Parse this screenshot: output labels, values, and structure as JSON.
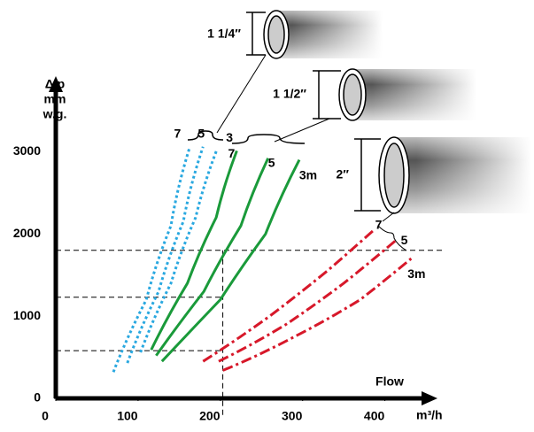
{
  "chart_data": {
    "type": "line",
    "y_label": [
      "Δ p",
      "mm",
      "w.g."
    ],
    "x_label": "Flow",
    "x_unit": "m³/h",
    "xlim": [
      0,
      465
    ],
    "ylim": [
      0,
      3800
    ],
    "xticks": [
      0,
      100,
      200,
      300,
      400
    ],
    "yticks": [
      0,
      1000,
      2000,
      3000
    ],
    "guides": {
      "y": [
        580,
        1230,
        1800
      ],
      "x": 203
    },
    "series": [
      {
        "name": "7",
        "group": 0,
        "color": "#29a8e0",
        "style": "dotted",
        "x": [
          70,
          110,
          140,
          163
        ],
        "values": [
          320,
          1200,
          2100,
          3060
        ]
      },
      {
        "name": "5",
        "group": 0,
        "color": "#29a8e0",
        "style": "dotted",
        "x": [
          87,
          125,
          155,
          179
        ],
        "values": [
          430,
          1300,
          2150,
          3060
        ]
      },
      {
        "name": "3",
        "group": 0,
        "color": "#29a8e0",
        "style": "dotted",
        "x": [
          103,
          140,
          170,
          196
        ],
        "values": [
          560,
          1400,
          2200,
          3030
        ]
      },
      {
        "name": "7",
        "group": 1,
        "color": "#1a9a3a",
        "style": "solid",
        "x": [
          116,
          160,
          195,
          220
        ],
        "values": [
          590,
          1400,
          2200,
          3010
        ]
      },
      {
        "name": "5",
        "group": 1,
        "color": "#1a9a3a",
        "style": "solid",
        "x": [
          122,
          180,
          225,
          258
        ],
        "values": [
          520,
          1300,
          2100,
          2920
        ]
      },
      {
        "name": "3m",
        "group": 1,
        "color": "#1a9a3a",
        "style": "solid",
        "x": [
          129,
          200,
          255,
          296
        ],
        "values": [
          450,
          1200,
          2000,
          2900
        ]
      },
      {
        "name": "7",
        "group": 2,
        "color": "#d7182a",
        "style": "dashdot",
        "x": [
          179,
          260,
          330,
          388
        ],
        "values": [
          450,
          1000,
          1550,
          2060
        ]
      },
      {
        "name": "5",
        "group": 2,
        "color": "#d7182a",
        "style": "dashdot",
        "x": [
          198,
          280,
          350,
          415
        ],
        "values": [
          450,
          900,
          1400,
          1935
        ]
      },
      {
        "name": "3m",
        "group": 2,
        "color": "#d7182a",
        "style": "dashdot",
        "x": [
          203,
          290,
          370,
          432
        ],
        "values": [
          340,
          750,
          1200,
          1700
        ]
      }
    ],
    "hoses": [
      "1 1/4″",
      "1 1/2″",
      "2″"
    ]
  }
}
